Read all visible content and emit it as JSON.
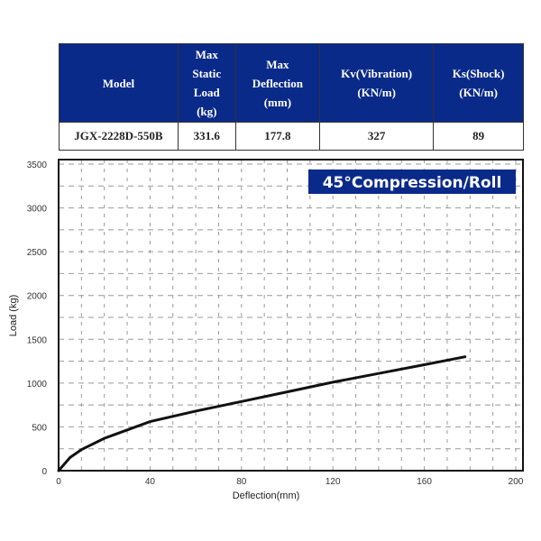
{
  "table": {
    "headers": [
      "Model",
      "Max Static Load (kg)",
      "Max Deflection (mm)",
      "Kv(Vibration) (KN/m)",
      "Ks(Shock) (KN/m)"
    ],
    "header_lines": [
      [
        "Model"
      ],
      [
        "Max",
        "Static",
        "Load",
        "(kg)"
      ],
      [
        "Max",
        "Deflection",
        "(mm)"
      ],
      [
        "Kv(Vibration)",
        "(KN/m)"
      ],
      [
        "Ks(Shock)",
        "(KN/m)"
      ]
    ],
    "row": [
      "JGX-2228D-550B",
      "331.6",
      "177.8",
      "327",
      "89"
    ],
    "header_bg": "#0a2a8a"
  },
  "chart_data": {
    "type": "line",
    "title": "45°Compression/Roll",
    "xlabel": "Deflection(mm)",
    "ylabel": "Load (kg)",
    "xlim": [
      0,
      200
    ],
    "ylim": [
      0,
      3500
    ],
    "xticks": [
      0,
      40,
      80,
      120,
      160,
      200
    ],
    "yticks": [
      0,
      500,
      1000,
      1500,
      2000,
      2500,
      3000,
      3500
    ],
    "grid": true,
    "legend": null,
    "series": [
      {
        "name": "45°Compression/Roll",
        "x": [
          0,
          5,
          10,
          20,
          40,
          60,
          80,
          100,
          120,
          140,
          160,
          177.8
        ],
        "y": [
          0,
          150,
          240,
          370,
          560,
          680,
          790,
          900,
          1010,
          1110,
          1210,
          1300
        ]
      }
    ]
  }
}
